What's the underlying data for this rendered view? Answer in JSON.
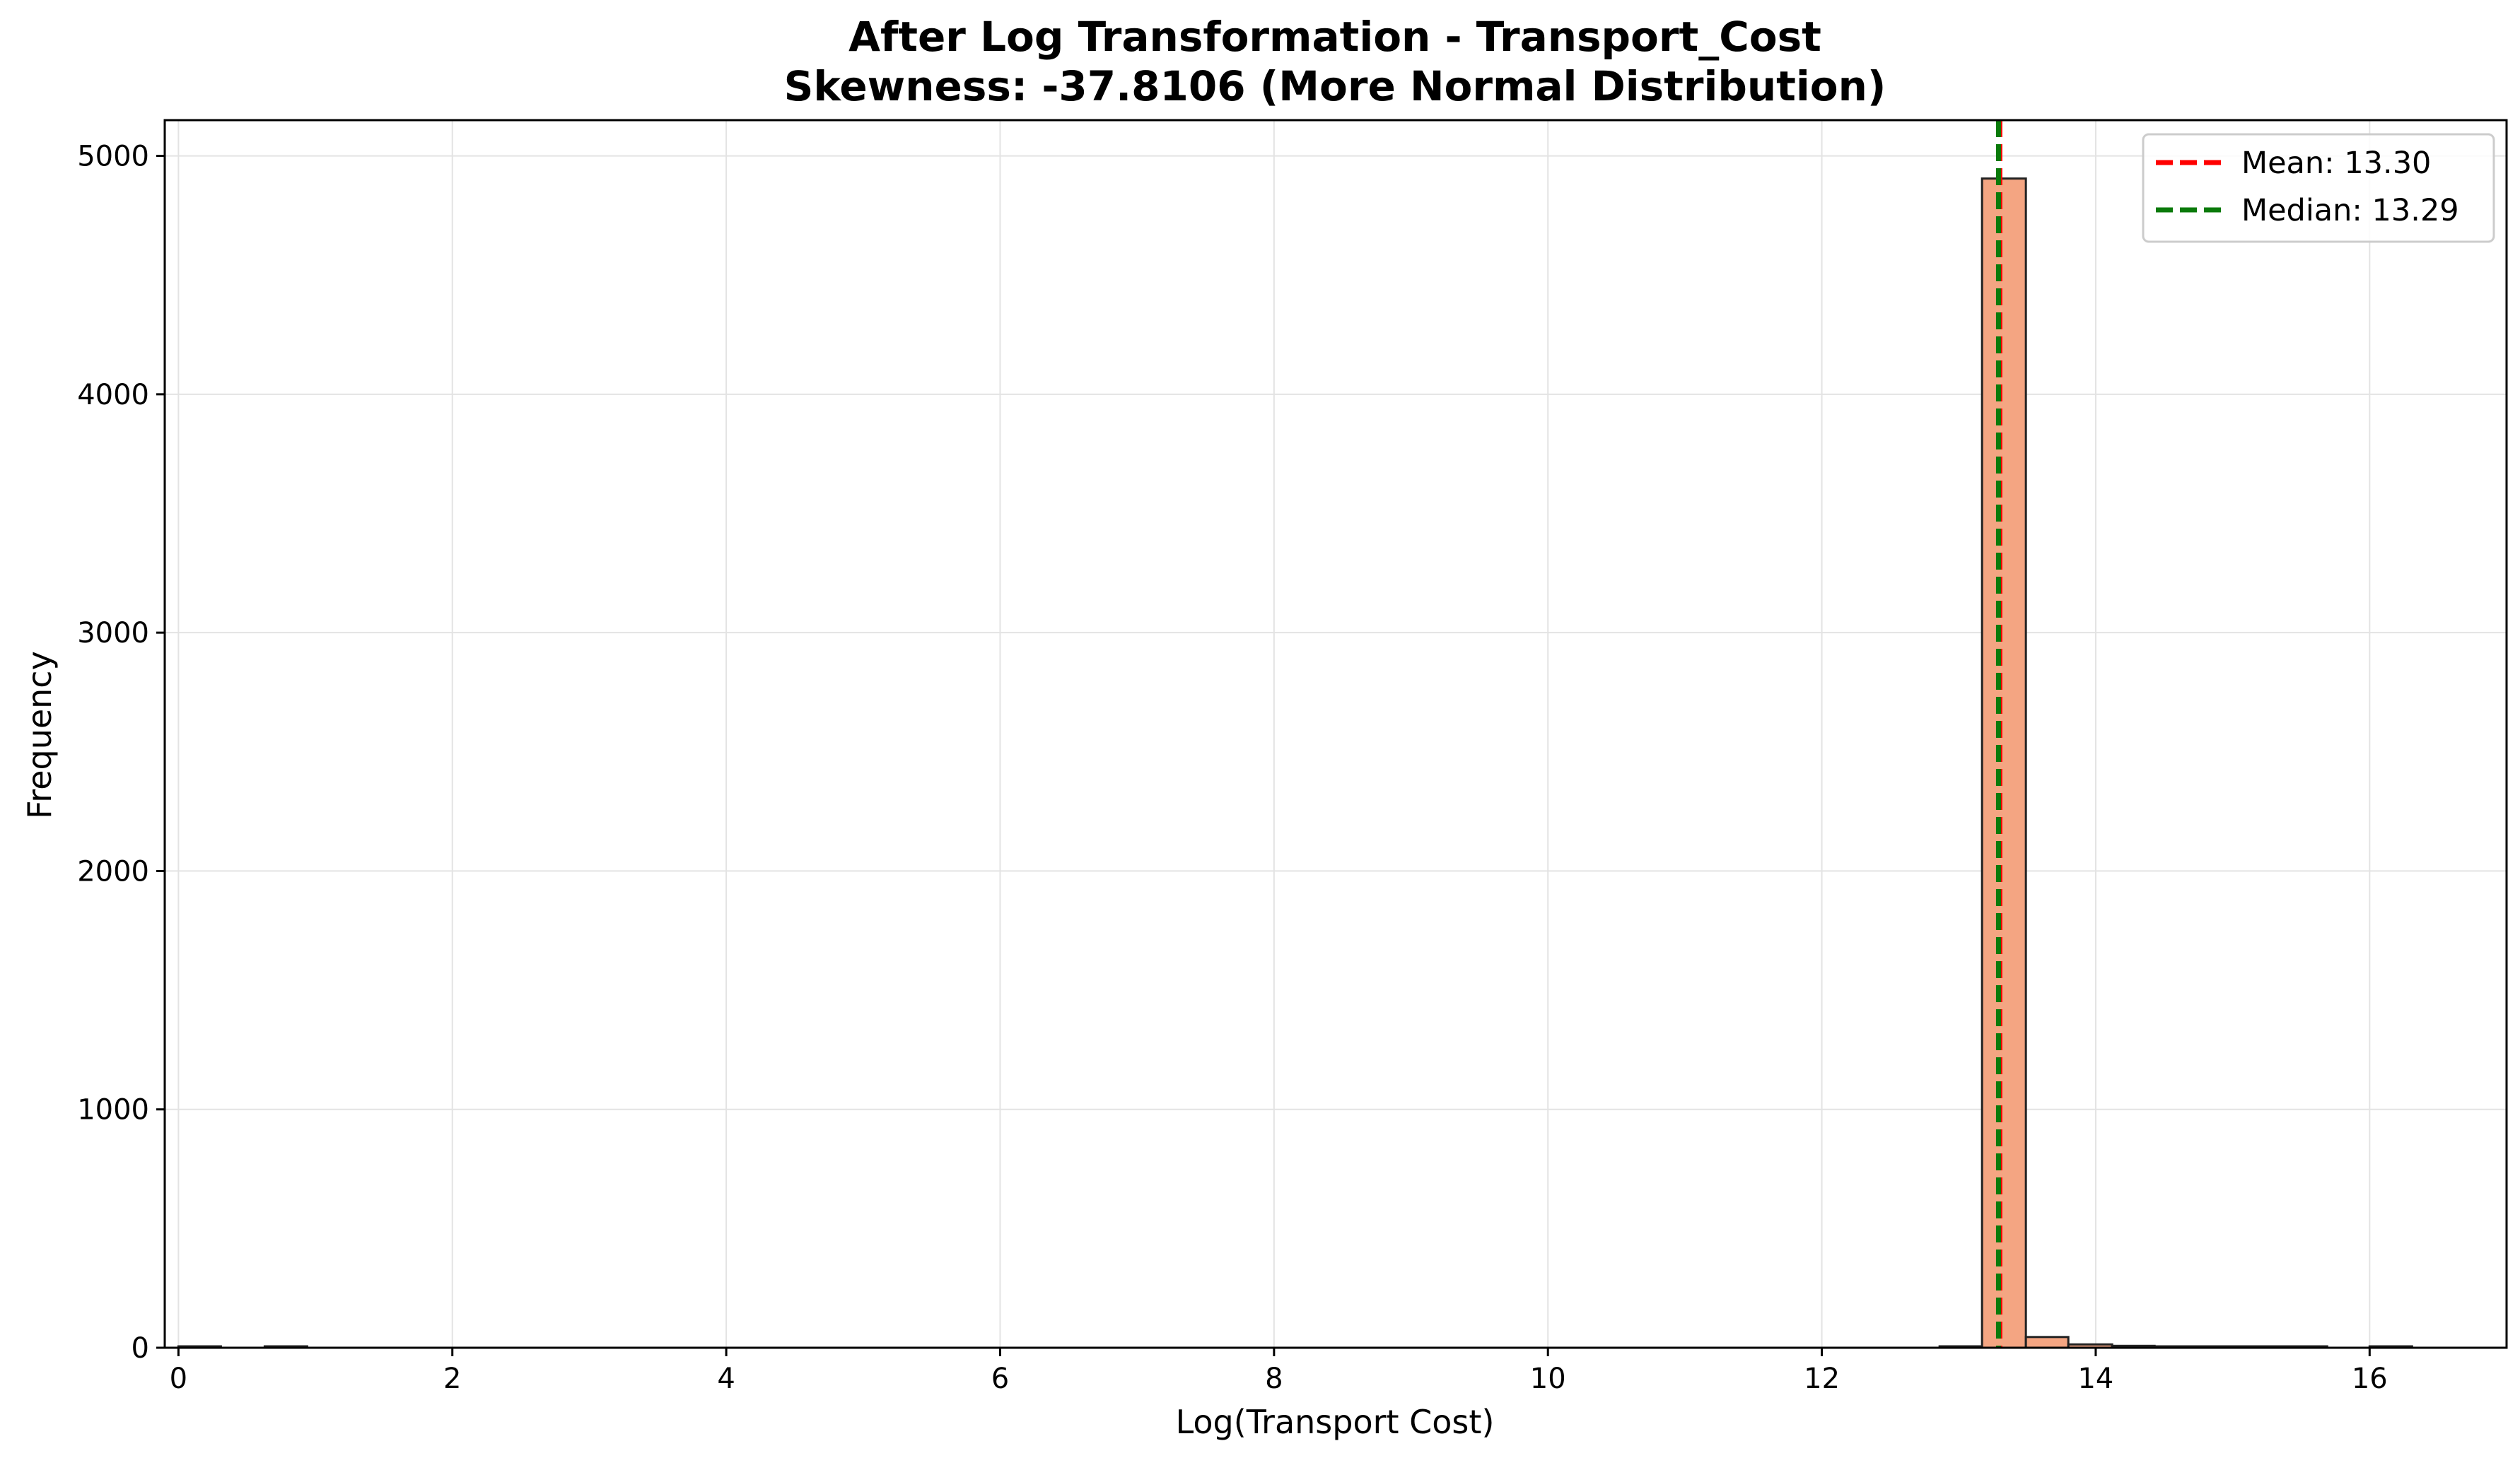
{
  "chart_data": {
    "type": "bar",
    "title": "After Log Transformation - Transport_Cost",
    "subtitle": "Skewness: -37.8106 (More Normal Distribution)",
    "xlabel": "Log(Transport Cost)",
    "ylabel": "Frequency",
    "xlim": [
      -0.1,
      17.0
    ],
    "ylim": [
      0,
      5150
    ],
    "x_ticks": [
      0,
      2,
      4,
      6,
      8,
      10,
      12,
      14,
      16
    ],
    "y_ticks": [
      0,
      1000,
      2000,
      3000,
      4000,
      5000
    ],
    "grid": true,
    "bins": [
      {
        "x0": 0.0,
        "x1": 0.31,
        "count": 1
      },
      {
        "x0": 0.31,
        "x1": 0.63,
        "count": 0
      },
      {
        "x0": 0.63,
        "x1": 0.94,
        "count": 1
      },
      {
        "x0": 0.94,
        "x1": 12.86,
        "count": 0
      },
      {
        "x0": 12.86,
        "x1": 13.17,
        "count": 6
      },
      {
        "x0": 13.17,
        "x1": 13.49,
        "count": 4905
      },
      {
        "x0": 13.49,
        "x1": 13.8,
        "count": 45
      },
      {
        "x0": 13.8,
        "x1": 14.12,
        "count": 14
      },
      {
        "x0": 14.12,
        "x1": 14.43,
        "count": 8
      },
      {
        "x0": 14.43,
        "x1": 14.74,
        "count": 3
      },
      {
        "x0": 14.74,
        "x1": 15.06,
        "count": 2
      },
      {
        "x0": 15.06,
        "x1": 15.37,
        "count": 2
      },
      {
        "x0": 15.37,
        "x1": 15.69,
        "count": 2
      },
      {
        "x0": 15.69,
        "x1": 16.0,
        "count": 0
      },
      {
        "x0": 16.0,
        "x1": 16.31,
        "count": 1
      }
    ],
    "bar_color": "#f4a582",
    "bar_edge_color": "#222222",
    "reference_lines": [
      {
        "name": "Mean: 13.30",
        "x": 13.3,
        "color": "#ff0000",
        "style": "dashed"
      },
      {
        "name": "Median: 13.29",
        "x": 13.29,
        "color": "#0a7a0a",
        "style": "dashed"
      }
    ],
    "legend_position": "top-right"
  }
}
